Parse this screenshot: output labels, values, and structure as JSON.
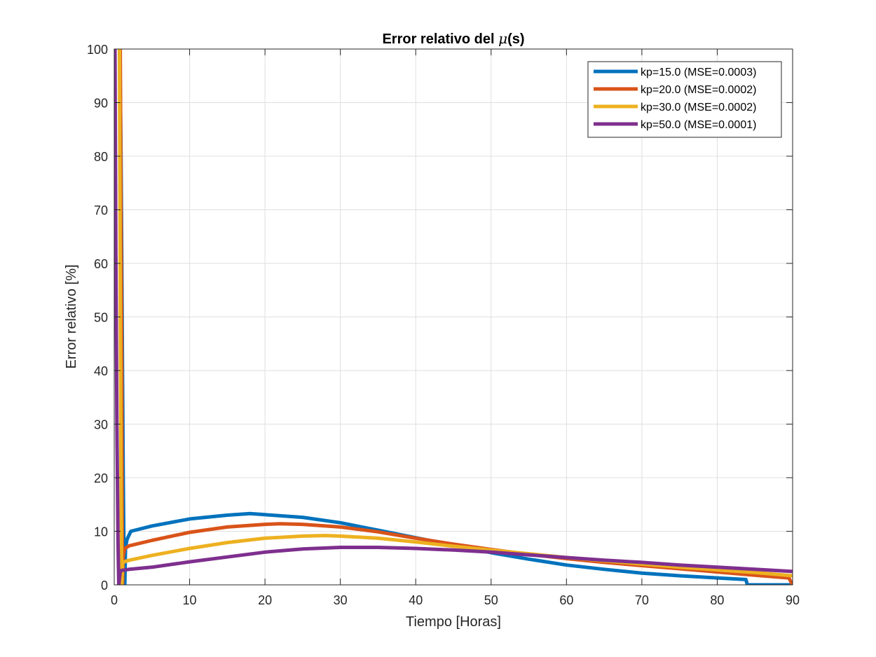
{
  "chart_data": {
    "type": "line",
    "title": "Error relativo del ",
    "title_symbol": "μ",
    "title_suffix": "(s)",
    "xlabel": "Tiempo [Horas]",
    "ylabel": "Error relativo [%]",
    "xlim": [
      0,
      90
    ],
    "ylim": [
      0,
      100
    ],
    "xticks": [
      0,
      10,
      20,
      30,
      40,
      50,
      60,
      70,
      80,
      90
    ],
    "yticks": [
      0,
      10,
      20,
      30,
      40,
      50,
      60,
      70,
      80,
      90,
      100
    ],
    "xtick_labels": [
      "0",
      "10",
      "20",
      "30",
      "40",
      "50",
      "60",
      "70",
      "80",
      "90"
    ],
    "ytick_labels": [
      "0",
      "10",
      "20",
      "30",
      "40",
      "50",
      "60",
      "70",
      "80",
      "90",
      "100"
    ],
    "grid": true,
    "legend_position": "top-right",
    "series": [
      {
        "name": "kp=15.0 (MSE=0.0003)",
        "color": "#0072BD",
        "x": [
          0.75,
          0.9,
          1.0,
          1.1,
          1.2,
          1.3,
          1.4,
          1.5,
          1.7,
          2.2,
          5,
          10,
          15,
          18,
          20,
          25,
          30,
          35,
          40,
          45,
          50,
          55,
          60,
          65,
          70,
          75,
          80,
          83.8,
          84.0,
          85,
          90
        ],
        "y": [
          100,
          80,
          60,
          40,
          20,
          5,
          0,
          7,
          8.5,
          10,
          11,
          12.3,
          13,
          13.3,
          13.1,
          12.6,
          11.6,
          10.2,
          8.8,
          7.4,
          6.0,
          4.8,
          3.7,
          2.9,
          2.2,
          1.7,
          1.3,
          1.0,
          0,
          0,
          0
        ]
      },
      {
        "name": "kp=20.0 (MSE=0.0002)",
        "color": "#D95319",
        "x": [
          0.8,
          0.9,
          1.0,
          1.05,
          1.1,
          1.2,
          1.4,
          2.0,
          5,
          10,
          15,
          20,
          22,
          25,
          30,
          35,
          40,
          45,
          50,
          55,
          60,
          65,
          70,
          75,
          80,
          85,
          89.5,
          90
        ],
        "y": [
          100,
          70,
          40,
          15,
          0,
          5.5,
          6.8,
          7.3,
          8.3,
          9.8,
          10.8,
          11.3,
          11.4,
          11.3,
          10.8,
          9.9,
          8.7,
          7.6,
          6.6,
          5.7,
          4.9,
          4.2,
          3.6,
          3.0,
          2.4,
          1.8,
          1.3,
          0
        ]
      },
      {
        "name": "kp=30.0 (MSE=0.0002)",
        "color": "#EDB120",
        "x": [
          0.7,
          0.8,
          0.9,
          1.0,
          1.1,
          1.3,
          2,
          5,
          10,
          15,
          20,
          25,
          28,
          30,
          35,
          40,
          45,
          50,
          55,
          60,
          65,
          70,
          75,
          80,
          85,
          90
        ],
        "y": [
          100,
          55,
          20,
          0,
          4,
          4.3,
          4.6,
          5.5,
          6.8,
          7.9,
          8.7,
          9.1,
          9.2,
          9.1,
          8.7,
          8.0,
          7.2,
          6.5,
          5.8,
          5.1,
          4.5,
          3.9,
          3.3,
          2.8,
          2.3,
          1.7
        ]
      },
      {
        "name": "kp=50.0 (MSE=0.0001)",
        "color": "#7E2F8E",
        "x": [
          0.1,
          0.2,
          0.35,
          0.5,
          0.6,
          0.8,
          1.0,
          2,
          5,
          10,
          15,
          20,
          25,
          30,
          35,
          40,
          45,
          50,
          55,
          60,
          65,
          70,
          75,
          80,
          85,
          90
        ],
        "y": [
          100,
          65,
          30,
          8,
          0,
          2.5,
          2.7,
          2.9,
          3.3,
          4.3,
          5.2,
          6.1,
          6.7,
          7.0,
          7.0,
          6.8,
          6.5,
          6.1,
          5.6,
          5.1,
          4.6,
          4.2,
          3.7,
          3.3,
          2.9,
          2.5
        ]
      }
    ]
  }
}
